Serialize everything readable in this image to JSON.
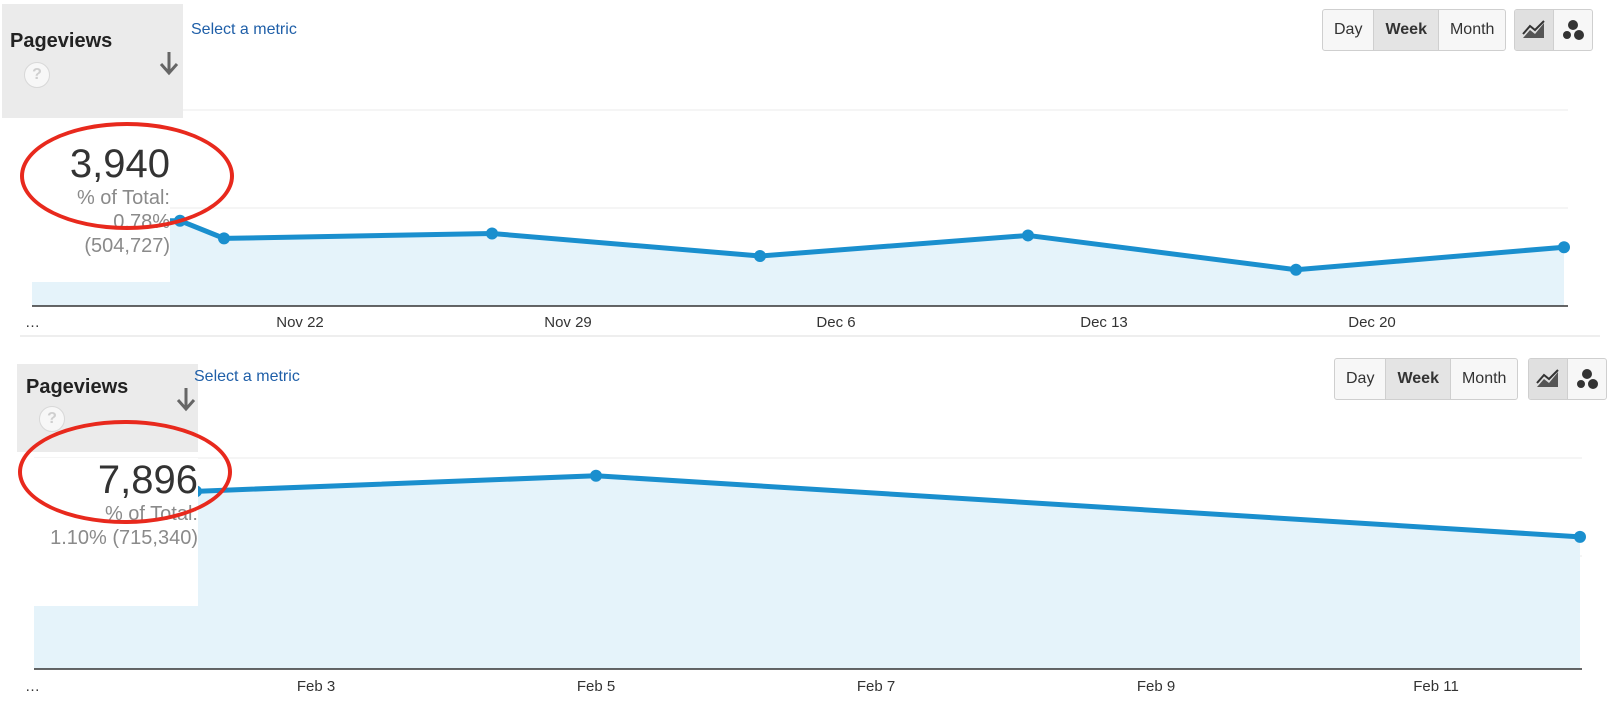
{
  "colors": {
    "line": "#1a8fce",
    "area": "#e5f3fa",
    "grid": "#ebebeb",
    "annotation": "#e8291d",
    "link": "#1f5fa8"
  },
  "panels": [
    {
      "metric_label": "Pageviews",
      "help_icon": "?",
      "select_metric": "Select a metric",
      "total_value": "3,940",
      "percent_line1": "% of Total:",
      "percent_line2": "0.78%",
      "percent_line3": "(504,727)",
      "granularity_buttons": [
        "Day",
        "Week",
        "Month"
      ],
      "active_granularity": "Week",
      "view_buttons": [
        "line-chart-icon",
        "motion-chart-icon"
      ],
      "ellipsis_label": "…"
    },
    {
      "metric_label": "Pageviews",
      "help_icon": "?",
      "select_metric": "Select a metric",
      "total_value": "7,896",
      "percent_line1": "% of Total:",
      "percent_line2": "1.10% (715,340)",
      "granularity_buttons": [
        "Day",
        "Week",
        "Month"
      ],
      "active_granularity": "Week",
      "view_buttons": [
        "line-chart-icon",
        "motion-chart-icon"
      ],
      "ellipsis_label": "…"
    }
  ],
  "chart_data": [
    {
      "type": "area",
      "x_tick_labels": [
        "Nov 22",
        "Nov 29",
        "Dec 6",
        "Dec 13",
        "Dec 20"
      ],
      "x": [
        "Nov 15",
        "Nov 18",
        "Nov 25",
        "Dec 2",
        "Dec 9",
        "Dec 16",
        "Dec 23"
      ],
      "series": [
        {
          "values": [
            870,
            690,
            740,
            510,
            720,
            370,
            600
          ]
        }
      ],
      "ylim": [
        0,
        2000
      ],
      "grid": true,
      "markers": true
    },
    {
      "type": "area",
      "x_tick_labels": [
        "Feb 3",
        "Feb 5",
        "Feb 7",
        "Feb 9",
        "Feb 11"
      ],
      "x": [
        "Feb 3",
        "Feb 5",
        "Feb 12"
      ],
      "series": [
        {
          "values": [
            1600,
            1740,
            1190
          ]
        }
      ],
      "ylim": [
        0,
        1900
      ],
      "grid": true,
      "markers": true
    }
  ]
}
